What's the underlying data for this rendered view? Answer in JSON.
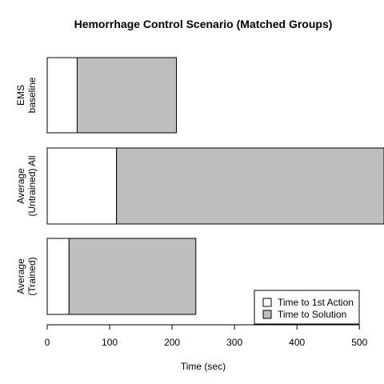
{
  "chart_data": {
    "type": "bar",
    "orientation": "horizontal",
    "stacked": true,
    "title": "Hemorrhage Control Scenario (Matched Groups)",
    "xlabel": "Time (sec)",
    "ylabel": "",
    "xlim": [
      0,
      540
    ],
    "xticks": [
      0,
      100,
      200,
      300,
      400,
      500
    ],
    "categories": [
      [
        "EMS",
        "baseline"
      ],
      [
        "Average",
        "(Untrained) All"
      ],
      [
        "Average",
        "(Trained)"
      ]
    ],
    "series": [
      {
        "name": "Time to 1st Action",
        "color": "#ffffff",
        "values": [
          48,
          111,
          35
        ]
      },
      {
        "name": "Time to Solution",
        "color": "#bebebe",
        "values": [
          159,
          429,
          203
        ]
      }
    ],
    "legend_position": "bottom-right",
    "grid": false
  }
}
